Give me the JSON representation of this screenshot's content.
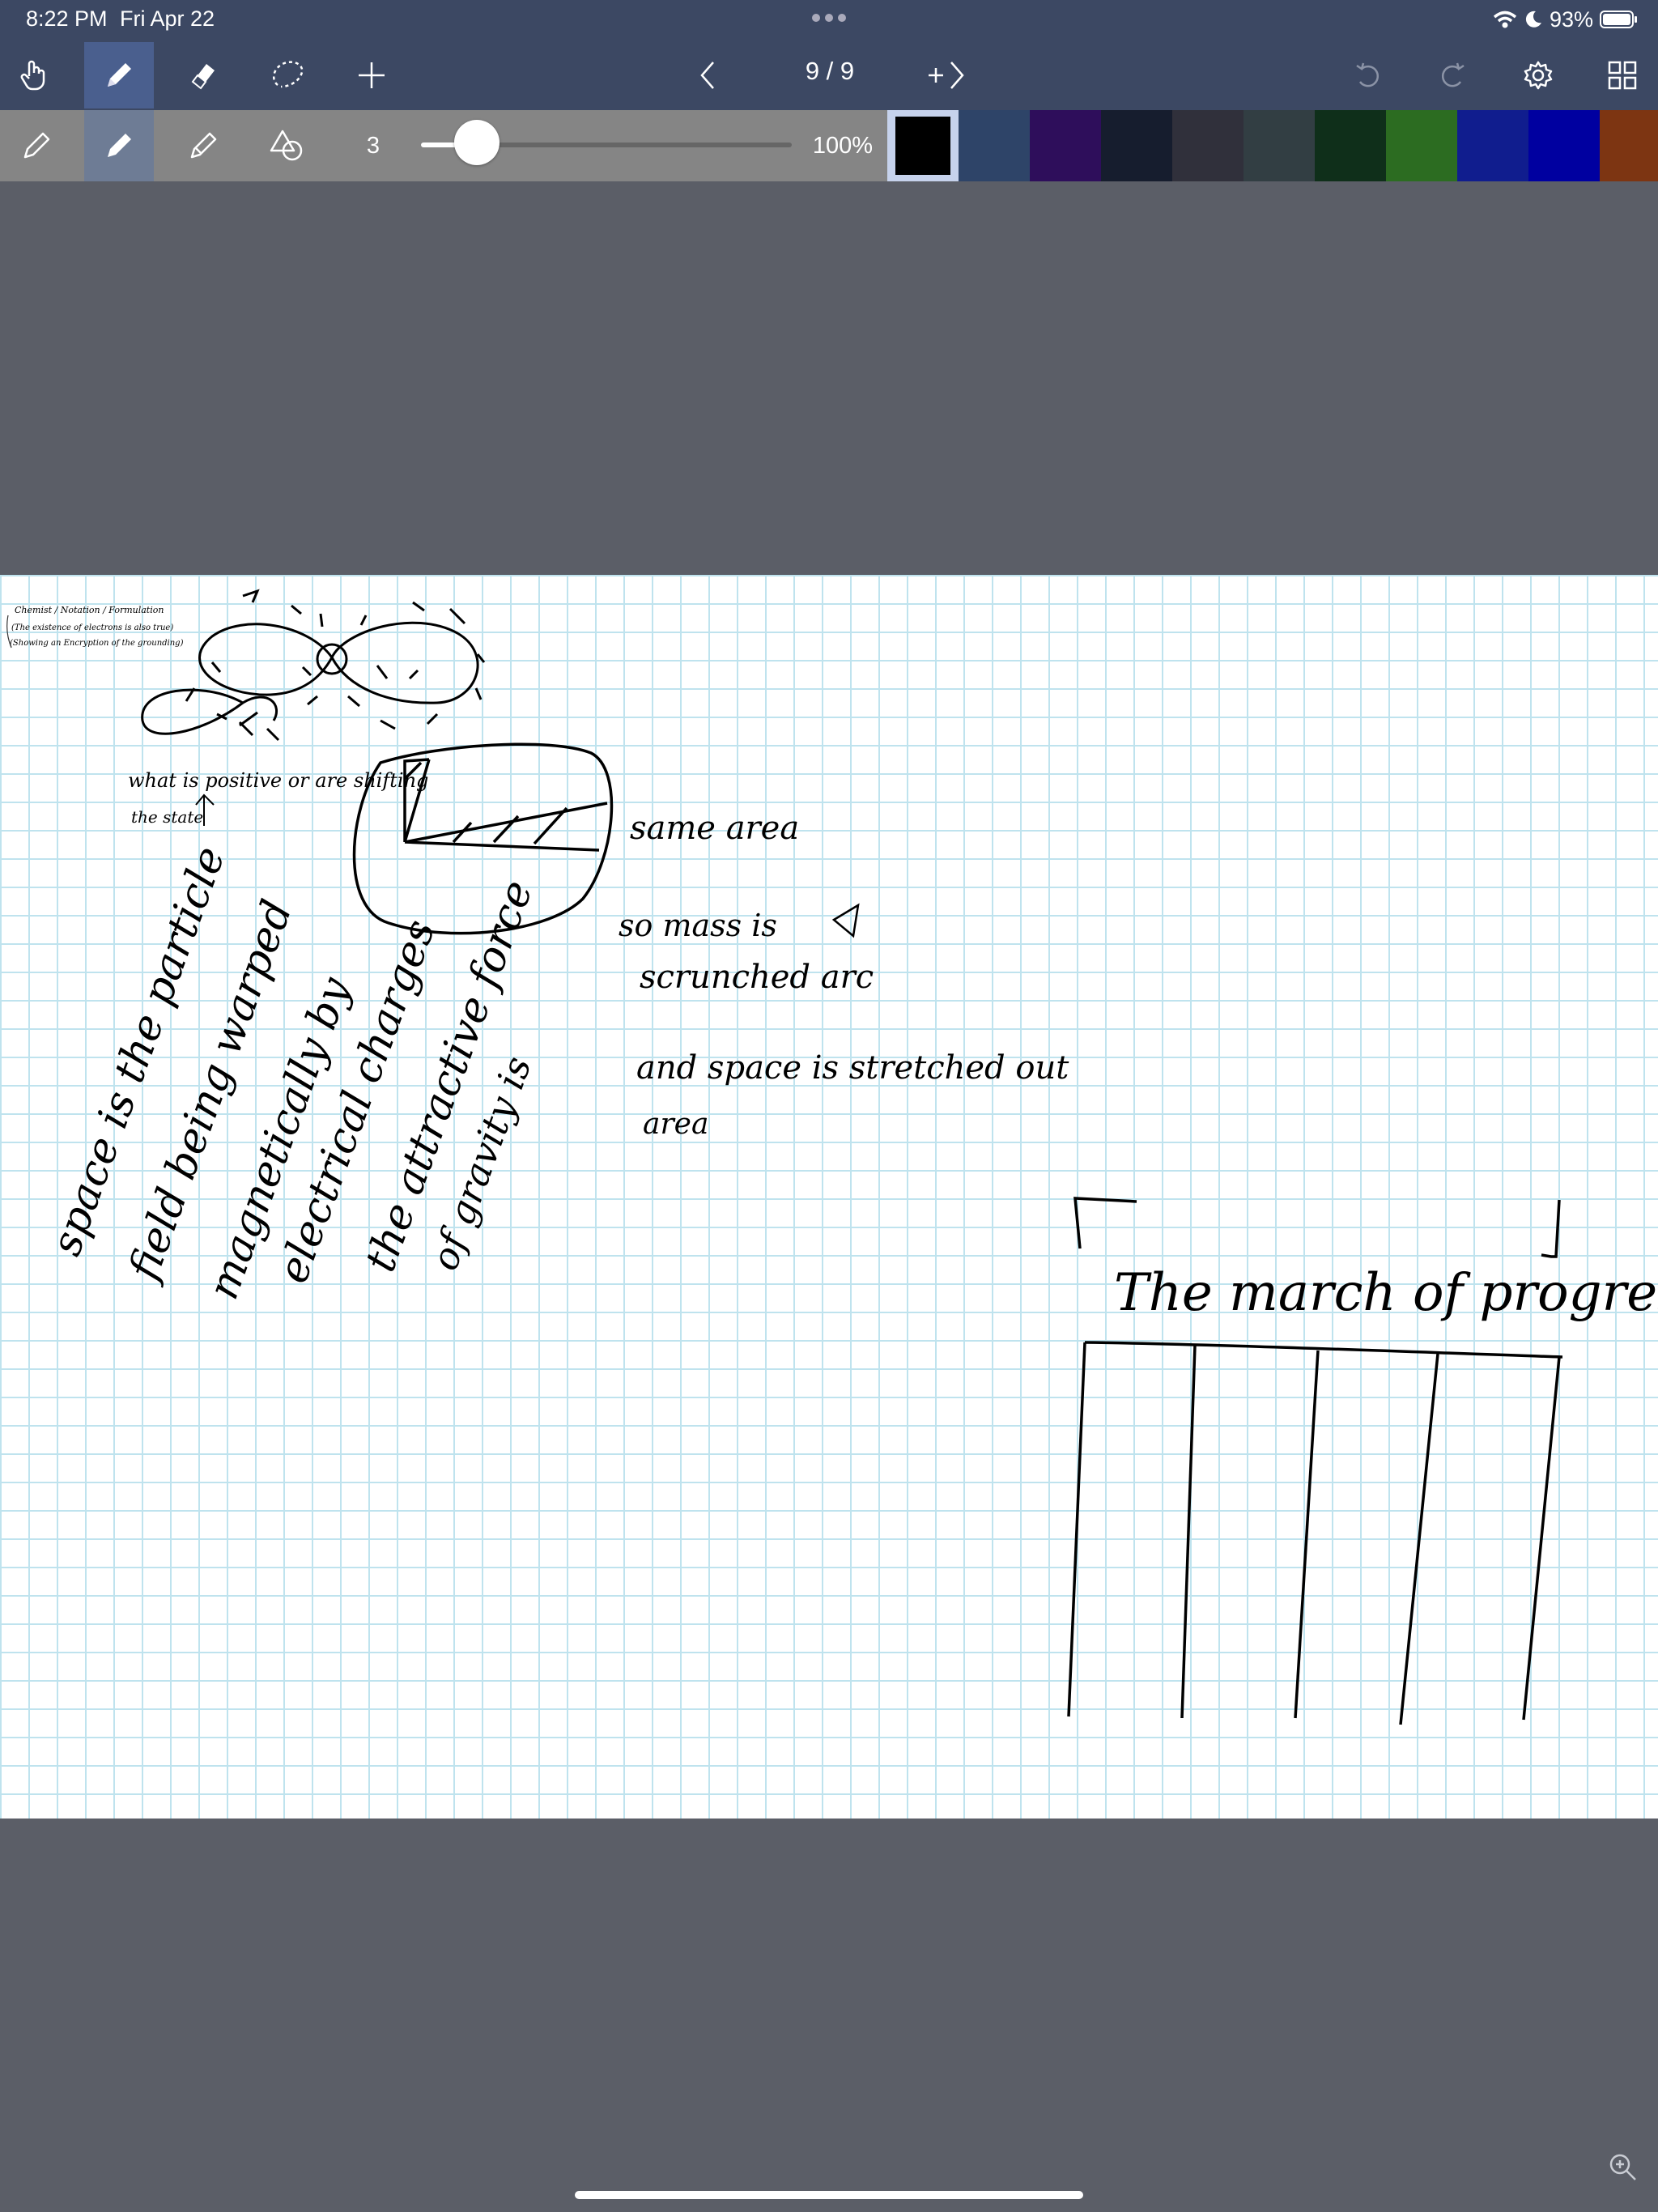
{
  "status_bar": {
    "time": "8:22 PM",
    "date": "Fri Apr 22",
    "battery": "93%"
  },
  "toolbar": {
    "page_indicator": "9 / 9",
    "tools": [
      "hand-icon",
      "pen-icon",
      "eraser-icon",
      "lasso-icon",
      "add-icon"
    ],
    "right_tools": [
      "undo-icon",
      "redo-icon",
      "gear-icon",
      "grid-view-icon"
    ]
  },
  "pen_settings": {
    "stroke_width": "3",
    "stroke_level": 0.15,
    "zoom": "100%",
    "colors": [
      "#000000",
      "#2e4468",
      "#2e0e5b",
      "#161d2e",
      "#30303b",
      "#323e43",
      "#0f2f1a",
      "#2c6c21",
      "#101d8e",
      "#0000a0",
      "#7d3512"
    ]
  },
  "notes": {
    "tiny_note_1": "Chemist / Notation / Formulation",
    "tiny_note_2": "(The existence of electrons is also true)",
    "tiny_note_3": "(Showing an Encryption of the grounding)",
    "question": "what is positive or are shifting",
    "question_2": "the state",
    "same_area": "same area",
    "mass_line_1": "so mass is",
    "mass_line_2": "scrunched arc",
    "space_line_1": "and space is stretched out",
    "space_line_2": "area",
    "diag_1": "space is the particle",
    "diag_2": "field being warped",
    "diag_3": "magnetically by",
    "diag_4": "electrical charges",
    "diag_5": "the attractive force",
    "diag_6": "of gravity is",
    "title": "The march of progress"
  }
}
